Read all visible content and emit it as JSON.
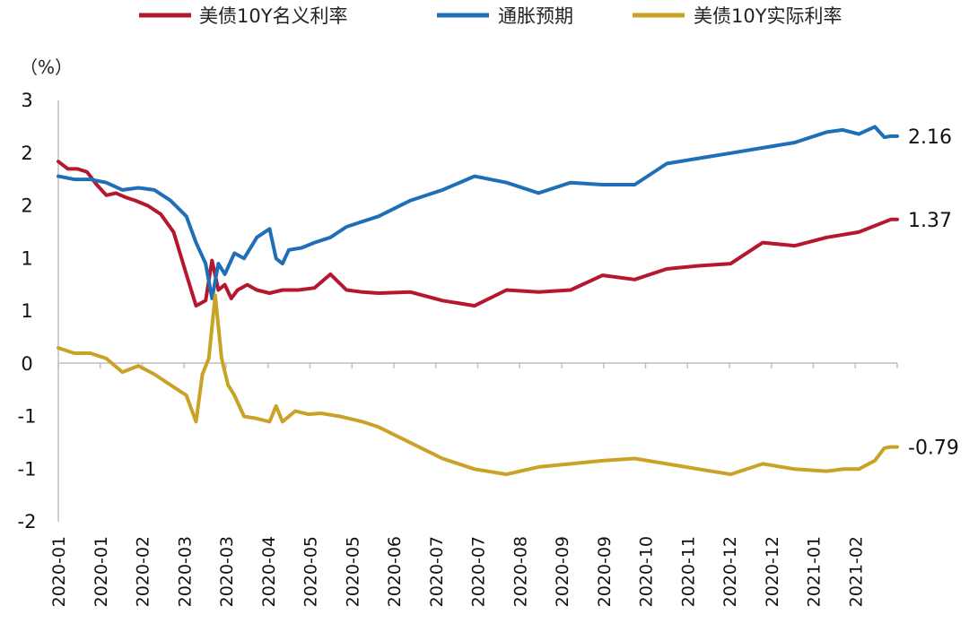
{
  "chart_data": {
    "type": "line",
    "unit_label": "（%）",
    "y_tick_labels": [
      "3",
      "2",
      "2",
      "1",
      "1",
      "0",
      "-1",
      "-1",
      "-2"
    ],
    "ylim": [
      -1.5,
      2.5
    ],
    "x_tick_labels": [
      "2020-01",
      "2020-01",
      "2020-02",
      "2020-03",
      "2020-03",
      "2020-04",
      "2020-05",
      "2020-05",
      "2020-06",
      "2020-07",
      "2020-07",
      "2020-08",
      "2020-09",
      "2020-09",
      "2020-10",
      "2020-11",
      "2020-12",
      "2020-12",
      "2021-01",
      "2021-02"
    ],
    "grid": false,
    "legend_position": "top",
    "series": [
      {
        "name": "美债10Y名义利率",
        "color": "#B5172E",
        "end_label": "1.37",
        "x": [
          0,
          3,
          6,
          9,
          12,
          15,
          18,
          21,
          24,
          28,
          32,
          36,
          40,
          43,
          46,
          48,
          50,
          52,
          54,
          56,
          59,
          62,
          66,
          70,
          75,
          80,
          85,
          90,
          95,
          100,
          110,
          120,
          130,
          140,
          150,
          160,
          170,
          180,
          190,
          200,
          210,
          220,
          230,
          240,
          250,
          260,
          262
        ],
        "y": [
          1.92,
          1.85,
          1.85,
          1.82,
          1.7,
          1.6,
          1.62,
          1.58,
          1.55,
          1.5,
          1.42,
          1.25,
          0.85,
          0.55,
          0.6,
          0.98,
          0.7,
          0.75,
          0.62,
          0.7,
          0.75,
          0.7,
          0.67,
          0.7,
          0.7,
          0.72,
          0.85,
          0.7,
          0.68,
          0.67,
          0.68,
          0.6,
          0.55,
          0.7,
          0.68,
          0.7,
          0.84,
          0.8,
          0.9,
          0.93,
          0.95,
          1.15,
          1.12,
          1.2,
          1.25,
          1.37,
          1.37
        ]
      },
      {
        "name": "通胀预期",
        "color": "#1F6FB8",
        "end_label": "2.16",
        "x": [
          0,
          5,
          10,
          15,
          20,
          25,
          30,
          35,
          40,
          43,
          46,
          48,
          50,
          52,
          55,
          58,
          62,
          66,
          68,
          70,
          72,
          76,
          80,
          85,
          90,
          95,
          100,
          110,
          120,
          130,
          140,
          150,
          160,
          170,
          180,
          190,
          200,
          210,
          220,
          230,
          240,
          245,
          250,
          255,
          258,
          260,
          262
        ],
        "y": [
          1.78,
          1.75,
          1.75,
          1.72,
          1.65,
          1.67,
          1.65,
          1.55,
          1.4,
          1.15,
          0.95,
          0.62,
          0.95,
          0.85,
          1.05,
          1.0,
          1.2,
          1.28,
          1.0,
          0.95,
          1.08,
          1.1,
          1.15,
          1.2,
          1.3,
          1.35,
          1.4,
          1.55,
          1.65,
          1.78,
          1.72,
          1.62,
          1.72,
          1.7,
          1.7,
          1.9,
          1.95,
          2.0,
          2.05,
          2.1,
          2.2,
          2.22,
          2.18,
          2.25,
          2.15,
          2.16,
          2.16
        ]
      },
      {
        "name": "美债10Y实际利率",
        "color": "#C9A227",
        "end_label": "-0.79",
        "x": [
          0,
          5,
          10,
          15,
          20,
          25,
          30,
          35,
          40,
          43,
          45,
          47,
          49,
          51,
          53,
          55,
          58,
          62,
          66,
          68,
          70,
          74,
          78,
          82,
          88,
          95,
          100,
          110,
          120,
          130,
          140,
          150,
          160,
          170,
          180,
          190,
          200,
          210,
          220,
          230,
          240,
          245,
          250,
          255,
          258,
          260,
          262
        ],
        "y": [
          0.15,
          0.1,
          0.1,
          0.05,
          -0.08,
          -0.02,
          -0.1,
          -0.2,
          -0.3,
          -0.55,
          -0.1,
          0.05,
          0.65,
          0.05,
          -0.2,
          -0.3,
          -0.5,
          -0.52,
          -0.55,
          -0.4,
          -0.55,
          -0.45,
          -0.48,
          -0.47,
          -0.5,
          -0.55,
          -0.6,
          -0.75,
          -0.9,
          -1.0,
          -1.05,
          -0.98,
          -0.95,
          -0.92,
          -0.9,
          -0.95,
          -1.0,
          -1.05,
          -0.95,
          -1.0,
          -1.02,
          -1.0,
          -1.0,
          -0.92,
          -0.8,
          -0.79,
          -0.79
        ]
      }
    ]
  }
}
